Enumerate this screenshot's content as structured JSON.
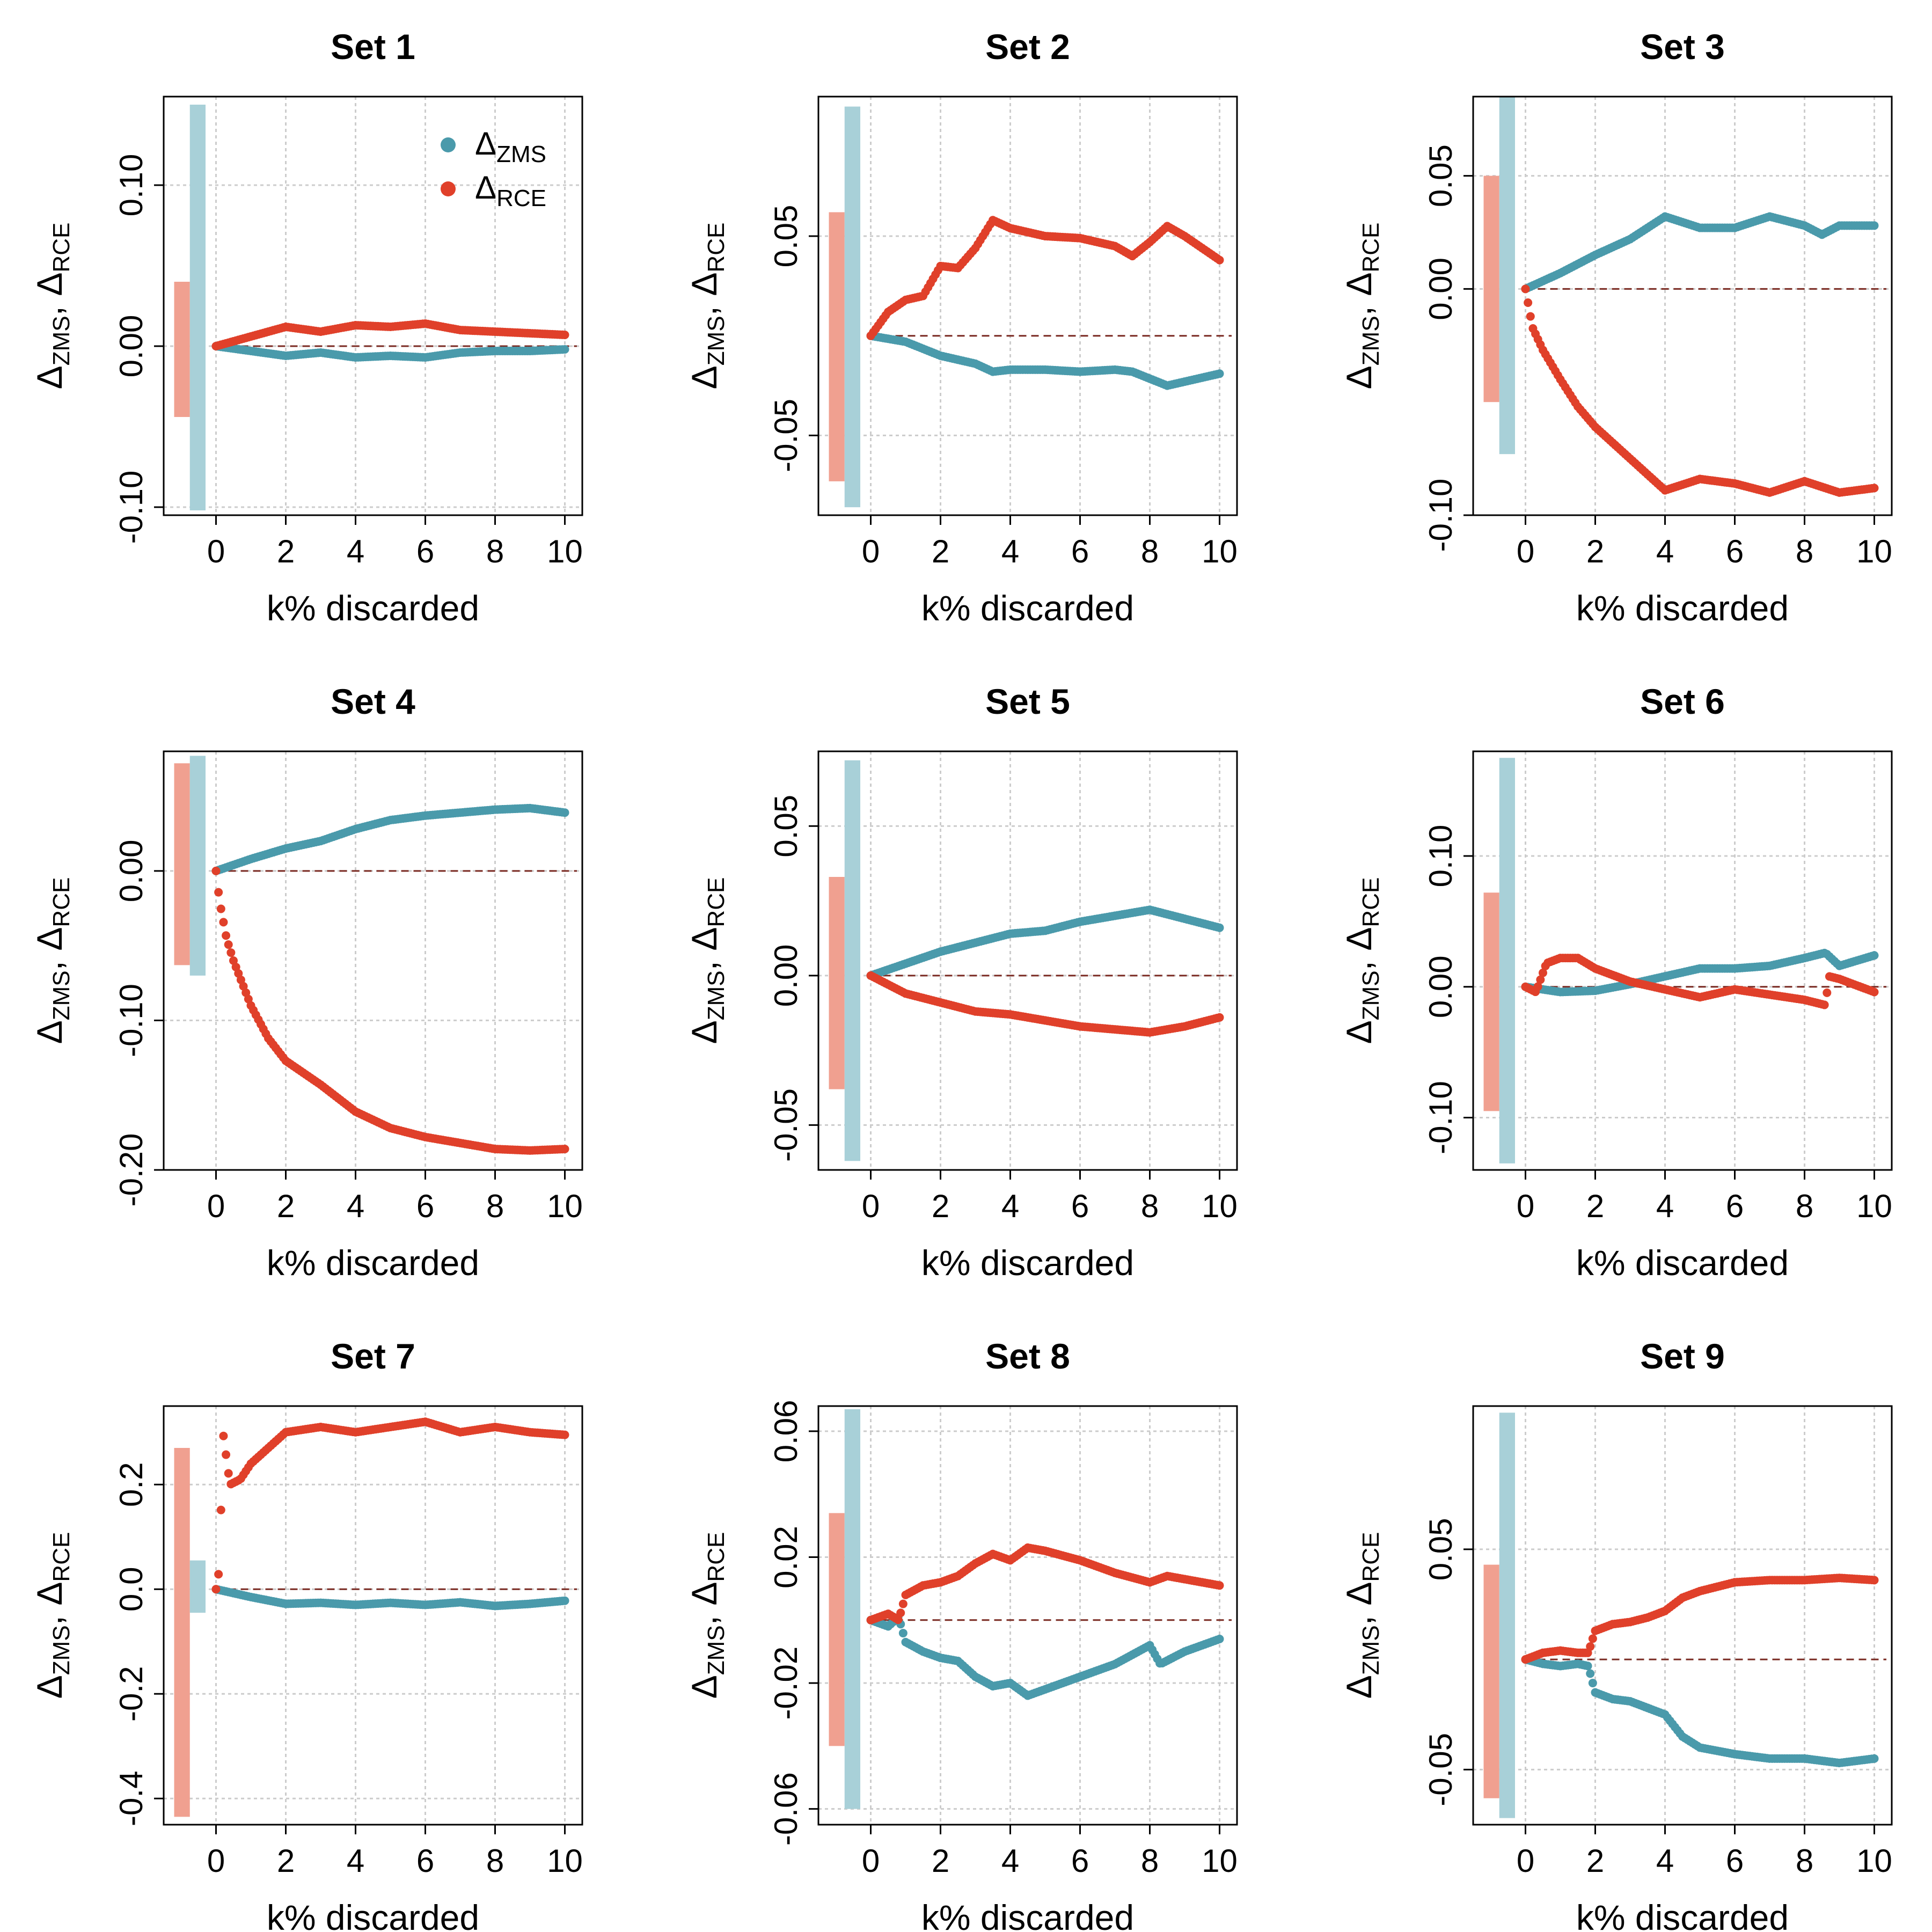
{
  "colors": {
    "zms": "#4a9aab",
    "rce": "#e0402a",
    "zms_band": "#a8d0d8",
    "rce_band": "#f0a090",
    "zero_line": "#7a2a22",
    "grid": "#cccccc"
  },
  "legend": {
    "zms_label": "ZMS",
    "rce_label": "RCE",
    "delta": "Δ"
  },
  "chart_data": [
    {
      "type": "scatter",
      "title": "Set 1",
      "xlabel": "k% discarded",
      "ylabel_sub1": "ZMS",
      "ylabel_sub2": "RCE",
      "xlim": [
        -1.5,
        10.5
      ],
      "ylim": [
        -0.105,
        0.155
      ],
      "xticks": [
        0,
        2,
        4,
        6,
        8,
        10
      ],
      "yticks": [
        -0.1,
        0.0,
        0.1
      ],
      "ytick_labels": [
        "-0.10",
        "0.00",
        "0.10"
      ],
      "bands": {
        "rce": [
          -0.044,
          0.04
        ],
        "zms": [
          -0.102,
          0.15
        ]
      },
      "series": [
        {
          "name": "ZMS",
          "x": [
            0,
            1,
            2,
            3,
            4,
            5,
            6,
            7,
            8,
            9,
            10
          ],
          "y": [
            0,
            -0.003,
            -0.006,
            -0.004,
            -0.007,
            -0.006,
            -0.007,
            -0.004,
            -0.003,
            -0.003,
            -0.002
          ]
        },
        {
          "name": "RCE",
          "x": [
            0,
            1,
            2,
            3,
            4,
            5,
            6,
            7,
            8,
            9,
            10
          ],
          "y": [
            0,
            0.006,
            0.012,
            0.009,
            0.013,
            0.012,
            0.014,
            0.01,
            0.009,
            0.008,
            0.007
          ]
        }
      ]
    },
    {
      "type": "scatter",
      "title": "Set 2",
      "xlabel": "k% discarded",
      "ylabel_sub1": "ZMS",
      "ylabel_sub2": "RCE",
      "xlim": [
        -1.5,
        10.5
      ],
      "ylim": [
        -0.09,
        0.12
      ],
      "xticks": [
        0,
        2,
        4,
        6,
        8,
        10
      ],
      "yticks": [
        -0.05,
        0.05
      ],
      "ytick_labels": [
        "-0.05",
        "0.05"
      ],
      "bands": {
        "rce": [
          -0.073,
          0.062
        ],
        "zms": [
          -0.086,
          0.115
        ]
      },
      "series": [
        {
          "name": "ZMS",
          "x": [
            0,
            1,
            2,
            3,
            3.5,
            4,
            5,
            6,
            7,
            7.5,
            8.5,
            10
          ],
          "y": [
            0,
            -0.003,
            -0.01,
            -0.014,
            -0.018,
            -0.017,
            -0.017,
            -0.018,
            -0.017,
            -0.018,
            -0.025,
            -0.019
          ]
        },
        {
          "name": "RCE",
          "x": [
            0,
            0.5,
            1,
            1.5,
            2,
            2.5,
            3,
            3.5,
            4,
            5,
            6,
            7,
            7.5,
            8,
            8.5,
            9,
            10
          ],
          "y": [
            0,
            0.012,
            0.018,
            0.02,
            0.035,
            0.034,
            0.044,
            0.058,
            0.054,
            0.05,
            0.049,
            0.045,
            0.04,
            0.047,
            0.055,
            0.05,
            0.038
          ]
        }
      ]
    },
    {
      "type": "scatter",
      "title": "Set 3",
      "xlabel": "k% discarded",
      "ylabel_sub1": "ZMS",
      "ylabel_sub2": "RCE",
      "xlim": [
        -1.5,
        10.5
      ],
      "ylim": [
        -0.1,
        0.085
      ],
      "xticks": [
        0,
        2,
        4,
        6,
        8,
        10
      ],
      "yticks": [
        -0.1,
        0.0,
        0.05
      ],
      "ytick_labels": [
        "-0.10",
        "0.00",
        "0.05"
      ],
      "bands": {
        "rce": [
          -0.05,
          0.05
        ],
        "zms": [
          -0.073,
          0.085
        ]
      },
      "series": [
        {
          "name": "ZMS",
          "x": [
            0,
            1,
            2,
            3,
            4,
            5,
            6,
            7,
            8,
            8.5,
            9,
            10
          ],
          "y": [
            0,
            0.007,
            0.015,
            0.022,
            0.032,
            0.027,
            0.027,
            0.032,
            0.028,
            0.024,
            0.028,
            0.028
          ]
        },
        {
          "name": "RCE",
          "x": [
            0,
            0.2,
            0.5,
            1,
            1.5,
            2,
            2.5,
            3,
            3.5,
            4,
            5,
            6,
            7,
            8,
            9,
            10
          ],
          "y": [
            0,
            -0.017,
            -0.027,
            -0.04,
            -0.052,
            -0.061,
            -0.068,
            -0.075,
            -0.082,
            -0.089,
            -0.084,
            -0.086,
            -0.09,
            -0.085,
            -0.09,
            -0.088
          ]
        }
      ]
    },
    {
      "type": "scatter",
      "title": "Set 4",
      "xlabel": "k% discarded",
      "ylabel_sub1": "ZMS",
      "ylabel_sub2": "RCE",
      "xlim": [
        -1.5,
        10.5
      ],
      "ylim": [
        -0.2,
        0.08
      ],
      "xticks": [
        0,
        2,
        4,
        6,
        8,
        10
      ],
      "yticks": [
        -0.2,
        -0.1,
        0.0
      ],
      "ytick_labels": [
        "-0.20",
        "-0.10",
        "0.00"
      ],
      "bands": {
        "rce": [
          -0.063,
          0.072
        ],
        "zms": [
          -0.07,
          0.077
        ]
      },
      "series": [
        {
          "name": "ZMS",
          "x": [
            0,
            1,
            2,
            3,
            4,
            5,
            6,
            7,
            8,
            9,
            10
          ],
          "y": [
            0,
            0.008,
            0.015,
            0.02,
            0.028,
            0.034,
            0.037,
            0.039,
            0.041,
            0.042,
            0.039
          ]
        },
        {
          "name": "RCE",
          "x": [
            0,
            0.1,
            0.3,
            0.5,
            1,
            1.5,
            2,
            3,
            4,
            5,
            6,
            7,
            8,
            9,
            10
          ],
          "y": [
            0,
            -0.02,
            -0.045,
            -0.06,
            -0.09,
            -0.112,
            -0.127,
            -0.143,
            -0.161,
            -0.172,
            -0.178,
            -0.182,
            -0.186,
            -0.187,
            -0.186
          ]
        }
      ]
    },
    {
      "type": "scatter",
      "title": "Set 5",
      "xlabel": "k% discarded",
      "ylabel_sub1": "ZMS",
      "ylabel_sub2": "RCE",
      "xlim": [
        -1.5,
        10.5
      ],
      "ylim": [
        -0.065,
        0.075
      ],
      "xticks": [
        0,
        2,
        4,
        6,
        8,
        10
      ],
      "yticks": [
        -0.05,
        0.0,
        0.05
      ],
      "ytick_labels": [
        "-0.05",
        "0.00",
        "0.05"
      ],
      "bands": {
        "rce": [
          -0.038,
          0.033
        ],
        "zms": [
          -0.062,
          0.072
        ]
      },
      "series": [
        {
          "name": "ZMS",
          "x": [
            0,
            1,
            2,
            3,
            4,
            5,
            6,
            7,
            8,
            9,
            10
          ],
          "y": [
            0,
            0.004,
            0.008,
            0.011,
            0.014,
            0.015,
            0.018,
            0.02,
            0.022,
            0.019,
            0.016
          ]
        },
        {
          "name": "RCE",
          "x": [
            0,
            1,
            2,
            3,
            4,
            5,
            6,
            7,
            8,
            9,
            10
          ],
          "y": [
            0,
            -0.006,
            -0.009,
            -0.012,
            -0.013,
            -0.015,
            -0.017,
            -0.018,
            -0.019,
            -0.017,
            -0.014
          ]
        }
      ]
    },
    {
      "type": "scatter",
      "title": "Set 6",
      "xlabel": "k% discarded",
      "ylabel_sub1": "ZMS",
      "ylabel_sub2": "RCE",
      "xlim": [
        -1.5,
        10.5
      ],
      "ylim": [
        -0.14,
        0.18
      ],
      "xticks": [
        0,
        2,
        4,
        6,
        8,
        10
      ],
      "yticks": [
        -0.1,
        0.0,
        0.1
      ],
      "ytick_labels": [
        "-0.10",
        "0.00",
        "0.10"
      ],
      "bands": {
        "rce": [
          -0.095,
          0.072
        ],
        "zms": [
          -0.135,
          0.175
        ]
      },
      "series": [
        {
          "name": "ZMS",
          "x": [
            0,
            1,
            2,
            3,
            4,
            5,
            6,
            7,
            8,
            8.6,
            9,
            10
          ],
          "y": [
            0,
            -0.004,
            -0.003,
            0.002,
            0.008,
            0.014,
            0.014,
            0.016,
            0.022,
            0.026,
            0.016,
            0.024
          ]
        },
        {
          "name": "RCE",
          "x": [
            0,
            0.3,
            0.6,
            1,
            1.5,
            2,
            3,
            4,
            5,
            6,
            7,
            8,
            8.6,
            8.7,
            9,
            10
          ],
          "y": [
            0,
            -0.004,
            0.018,
            0.022,
            0.022,
            0.014,
            0.004,
            -0.002,
            -0.008,
            -0.002,
            -0.006,
            -0.01,
            -0.014,
            0.008,
            0.006,
            -0.004
          ]
        }
      ]
    },
    {
      "type": "scatter",
      "title": "Set 7",
      "xlabel": "k% discarded",
      "ylabel_sub1": "ZMS",
      "ylabel_sub2": "RCE",
      "xlim": [
        -1.5,
        10.5
      ],
      "ylim": [
        -0.45,
        0.35
      ],
      "xticks": [
        0,
        2,
        4,
        6,
        8,
        10
      ],
      "yticks": [
        -0.4,
        -0.2,
        0.0,
        0.2
      ],
      "ytick_labels": [
        "-0.4",
        "-0.2",
        "0.0",
        "0.2"
      ],
      "bands": {
        "rce": [
          -0.435,
          0.27
        ],
        "zms": [
          -0.045,
          0.055
        ]
      },
      "series": [
        {
          "name": "ZMS",
          "x": [
            0,
            1,
            2,
            3,
            4,
            5,
            6,
            7,
            8,
            9,
            10
          ],
          "y": [
            0,
            -0.015,
            -0.028,
            -0.026,
            -0.03,
            -0.026,
            -0.03,
            -0.025,
            -0.032,
            -0.028,
            -0.022
          ]
        },
        {
          "name": "RCE",
          "x": [
            0,
            0.1,
            0.2,
            0.4,
            0.7,
            1,
            1.5,
            2,
            3,
            4,
            5,
            6,
            7,
            8,
            9,
            10
          ],
          "y": [
            0,
            0.04,
            0.3,
            0.2,
            0.21,
            0.24,
            0.27,
            0.3,
            0.31,
            0.3,
            0.31,
            0.32,
            0.3,
            0.31,
            0.3,
            0.295
          ]
        }
      ]
    },
    {
      "type": "scatter",
      "title": "Set 8",
      "xlabel": "k% discarded",
      "ylabel_sub1": "ZMS",
      "ylabel_sub2": "RCE",
      "xlim": [
        -1.5,
        10.5
      ],
      "ylim": [
        -0.065,
        0.068
      ],
      "xticks": [
        0,
        2,
        4,
        6,
        8,
        10
      ],
      "yticks": [
        -0.06,
        -0.02,
        0.02,
        0.06
      ],
      "ytick_labels": [
        "-0.06",
        "-0.02",
        "0.02",
        "0.06"
      ],
      "bands": {
        "rce": [
          -0.04,
          0.034
        ],
        "zms": [
          -0.06,
          0.067
        ]
      },
      "series": [
        {
          "name": "ZMS",
          "x": [
            0,
            0.5,
            0.8,
            1,
            1.5,
            2,
            2.5,
            3,
            3.5,
            4,
            4.5,
            5,
            6,
            7,
            8,
            8.3,
            9,
            10
          ],
          "y": [
            0,
            -0.002,
            0.001,
            -0.007,
            -0.01,
            -0.012,
            -0.013,
            -0.018,
            -0.021,
            -0.02,
            -0.024,
            -0.022,
            -0.018,
            -0.014,
            -0.008,
            -0.014,
            -0.01,
            -0.006
          ]
        },
        {
          "name": "RCE",
          "x": [
            0,
            0.5,
            0.8,
            1,
            1.5,
            2,
            2.5,
            3,
            3.5,
            4,
            4.5,
            5,
            6,
            7,
            8,
            8.5,
            9,
            10
          ],
          "y": [
            0,
            0.002,
            0.0,
            0.008,
            0.011,
            0.012,
            0.014,
            0.018,
            0.021,
            0.019,
            0.023,
            0.022,
            0.019,
            0.015,
            0.012,
            0.014,
            0.013,
            0.011
          ]
        }
      ]
    },
    {
      "type": "scatter",
      "title": "Set 9",
      "xlabel": "k% discarded",
      "ylabel_sub1": "ZMS",
      "ylabel_sub2": "RCE",
      "xlim": [
        -1.5,
        10.5
      ],
      "ylim": [
        -0.075,
        0.115
      ],
      "xticks": [
        0,
        2,
        4,
        6,
        8,
        10
      ],
      "yticks": [
        -0.05,
        0.05
      ],
      "ytick_labels": [
        "-0.05",
        "0.05"
      ],
      "bands": {
        "rce": [
          -0.063,
          0.043
        ],
        "zms": [
          -0.072,
          0.112
        ]
      },
      "series": [
        {
          "name": "ZMS",
          "x": [
            0,
            0.5,
            1,
            1.5,
            1.8,
            2,
            2.5,
            3,
            3.5,
            4,
            4.5,
            5,
            6,
            7,
            8,
            9,
            10
          ],
          "y": [
            0,
            -0.002,
            -0.003,
            -0.002,
            -0.003,
            -0.015,
            -0.018,
            -0.019,
            -0.022,
            -0.025,
            -0.035,
            -0.04,
            -0.043,
            -0.045,
            -0.045,
            -0.047,
            -0.045
          ]
        },
        {
          "name": "RCE",
          "x": [
            0,
            0.5,
            1,
            1.5,
            1.8,
            2,
            2.5,
            3,
            3.5,
            4,
            4.5,
            5,
            6,
            7,
            8,
            9,
            10
          ],
          "y": [
            0,
            0.003,
            0.004,
            0.003,
            0.003,
            0.013,
            0.016,
            0.017,
            0.019,
            0.022,
            0.028,
            0.031,
            0.035,
            0.036,
            0.036,
            0.037,
            0.036
          ]
        }
      ]
    }
  ]
}
